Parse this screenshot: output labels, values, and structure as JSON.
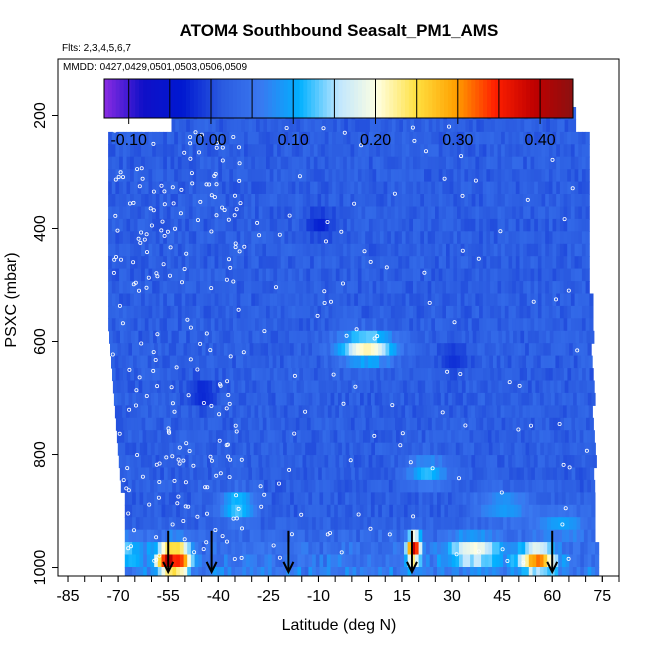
{
  "chart_data": {
    "type": "heatmap",
    "title": "ATOM4 Southbound Seasalt_PM1_AMS",
    "flights_label": "Flts: 2,3,4,5,6,7",
    "dates_label": "MMDD: 0427,0429,0501,0503,0506,0509",
    "xlabel": "Latitude (deg N)",
    "ylabel": "PSXC (mbar)",
    "xlim": [
      -88,
      80
    ],
    "ylim": [
      1015,
      100
    ],
    "x_ticks": [
      -85,
      -70,
      -55,
      -40,
      -25,
      -10,
      5,
      15,
      30,
      45,
      60,
      75
    ],
    "x_tick_labels": [
      "-85",
      "-70",
      "-55",
      "-40",
      "-25",
      "-10",
      "5",
      "15",
      "30",
      "45",
      "60",
      "75"
    ],
    "y_ticks": [
      200,
      400,
      600,
      800,
      1000
    ],
    "y_tick_labels": [
      "200",
      "400",
      "600",
      "800",
      "1000"
    ],
    "colorbar": {
      "min": -0.13,
      "max": 0.44,
      "ticks": [
        -0.1,
        0.0,
        0.1,
        0.2,
        0.3,
        0.4
      ],
      "tick_labels": [
        "-0.10",
        "0.00",
        "0.10",
        "0.20",
        "0.30",
        "0.40"
      ],
      "colors": [
        "#8a2be2",
        "#1010c8",
        "#0018d0",
        "#2a5ae0",
        "#3a78f0",
        "#00b0ff",
        "#bfe6ff",
        "#ffffe0",
        "#ffe040",
        "#ffa000",
        "#ff2000",
        "#c00000",
        "#8b1010"
      ]
    },
    "background_value": 0.02,
    "hotspots": [
      {
        "lat": 4,
        "pres": 600,
        "value": 0.22,
        "width": 8
      },
      {
        "lat": -55,
        "pres": 975,
        "value": 0.4,
        "width": 4
      },
      {
        "lat": -52,
        "pres": 975,
        "value": 0.3,
        "width": 3
      },
      {
        "lat": 18,
        "pres": 955,
        "value": 0.38,
        "width": 2
      },
      {
        "lat": 36,
        "pres": 960,
        "value": 0.18,
        "width": 8
      },
      {
        "lat": 55,
        "pres": 975,
        "value": 0.28,
        "width": 5
      },
      {
        "lat": -35,
        "pres": 880,
        "value": 0.14,
        "width": 5
      },
      {
        "lat": 22,
        "pres": 820,
        "value": 0.12,
        "width": 6
      },
      {
        "lat": 45,
        "pres": 880,
        "value": 0.1,
        "width": 8
      },
      {
        "lat": -68,
        "pres": 960,
        "value": 0.1,
        "width": 6
      },
      {
        "lat": 62,
        "pres": 910,
        "value": 0.09,
        "width": 8
      },
      {
        "lat": -45,
        "pres": 680,
        "value": -0.03,
        "width": 4
      },
      {
        "lat": -10,
        "pres": 380,
        "value": -0.03,
        "width": 4
      },
      {
        "lat": 30,
        "pres": 620,
        "value": -0.02,
        "width": 4
      }
    ],
    "descent_arrows_lat": [
      -55,
      -42,
      -19,
      18,
      60
    ]
  }
}
